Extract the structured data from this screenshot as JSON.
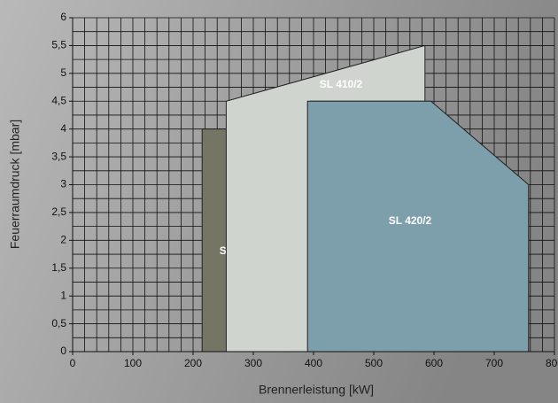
{
  "chart_data": {
    "type": "area-field",
    "xlabel": "Brennerleistung [kW]",
    "ylabel": "Feuerraumdruck [mbar]",
    "xlim": [
      0,
      800
    ],
    "ylim": [
      0,
      6
    ],
    "xticks": [
      0,
      100,
      200,
      300,
      400,
      500,
      600,
      700,
      800
    ],
    "yticks": [
      0,
      {
        "value": 0.5,
        "label": "0,5"
      },
      1,
      {
        "value": 1.5,
        "label": "1,5"
      },
      2,
      {
        "value": 2.5,
        "label": "2,5"
      },
      3,
      {
        "value": 3.5,
        "label": "3,5"
      },
      4,
      {
        "value": 4.5,
        "label": "4,5"
      },
      5,
      {
        "value": 5.5,
        "label": "5,5"
      },
      6
    ],
    "xgrid": [
      0,
      20,
      40,
      60,
      80,
      100,
      120,
      140,
      160,
      180,
      200,
      220,
      240,
      260,
      280,
      300,
      320,
      340,
      360,
      380,
      400,
      420,
      440,
      460,
      480,
      500,
      520,
      540,
      560,
      580,
      600,
      620,
      640,
      660,
      680,
      700,
      720,
      740,
      760,
      780,
      800
    ],
    "ygrid": [
      0,
      0.25,
      0.5,
      0.75,
      1,
      1.25,
      1.5,
      1.75,
      2,
      2.25,
      2.5,
      2.75,
      3,
      3.25,
      3.5,
      3.75,
      4,
      4.25,
      4.5,
      4.75,
      5,
      5.25,
      5.5,
      5.75,
      6
    ],
    "grid": true,
    "series": [
      {
        "name": "SL 400/2",
        "color": "#747565",
        "x": [
          215,
          215,
          345,
          345
        ],
        "values": [
          0,
          4,
          4,
          0
        ]
      },
      {
        "name": "SL 410/2",
        "color": "#cfd4cf",
        "x": [
          255,
          255,
          585,
          585,
          395,
          395
        ],
        "values": [
          0,
          4.5,
          5.5,
          4.5,
          4.5,
          0
        ]
      },
      {
        "name": "SL 420/2",
        "color": "#7d9fab",
        "x": [
          390,
          390,
          595,
          757,
          757
        ],
        "values": [
          0,
          4.5,
          4.5,
          3,
          0
        ]
      }
    ]
  }
}
